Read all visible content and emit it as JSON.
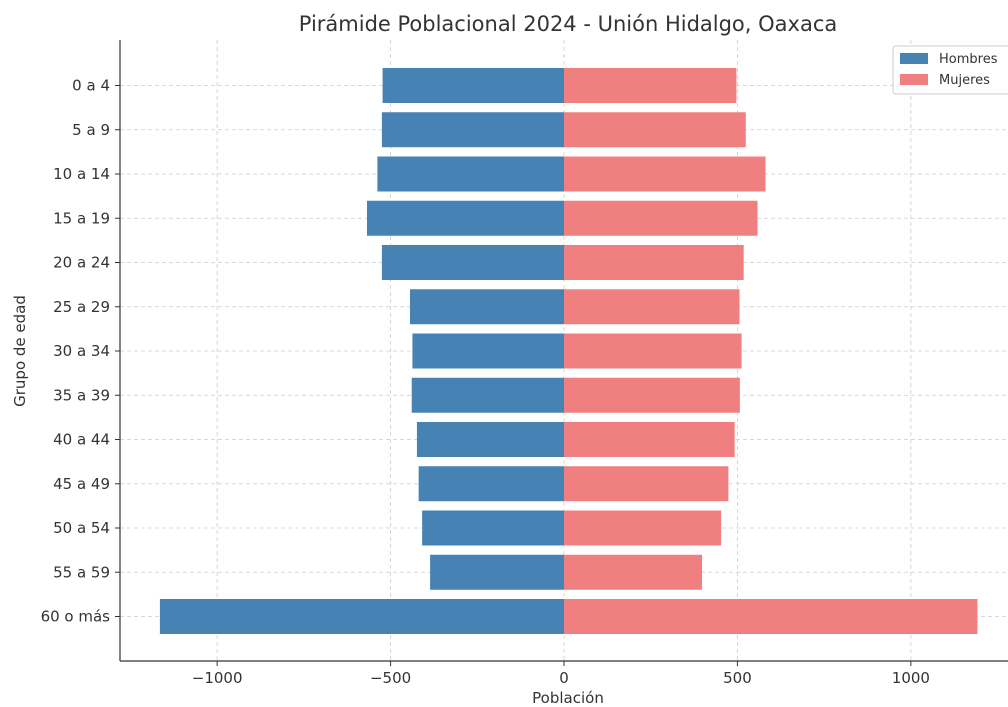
{
  "chart_data": {
    "type": "bar",
    "orientation": "horizontal",
    "title": "Pirámide Poblacional 2024 - Unión Hidalgo, Oaxaca",
    "xlabel": "Población",
    "ylabel": "Grupo de edad",
    "categories": [
      "0 a 4",
      "5 a 9",
      "10 a 14",
      "15 a 19",
      "20 a 24",
      "25 a 29",
      "30 a 34",
      "35 a 39",
      "40 a 44",
      "45 a 49",
      "50 a 54",
      "55 a 59",
      "60 o más"
    ],
    "series": [
      {
        "name": "Hombres",
        "color": "#4682b4",
        "values": [
          -523,
          -525,
          -538,
          -568,
          -525,
          -444,
          -437,
          -439,
          -424,
          -419,
          -409,
          -386,
          -1165
        ]
      },
      {
        "name": "Mujeres",
        "color": "#f08080",
        "values": [
          497,
          524,
          581,
          558,
          518,
          506,
          512,
          507,
          492,
          474,
          453,
          398,
          1192
        ]
      }
    ],
    "xlim": [
      -1280,
      1280
    ],
    "xticks": [
      -1000,
      -500,
      0,
      500,
      1000
    ],
    "xtick_labels": [
      "−1000",
      "−500",
      "0",
      "500",
      "1000"
    ],
    "grid": true,
    "legend_position": "top-right"
  }
}
